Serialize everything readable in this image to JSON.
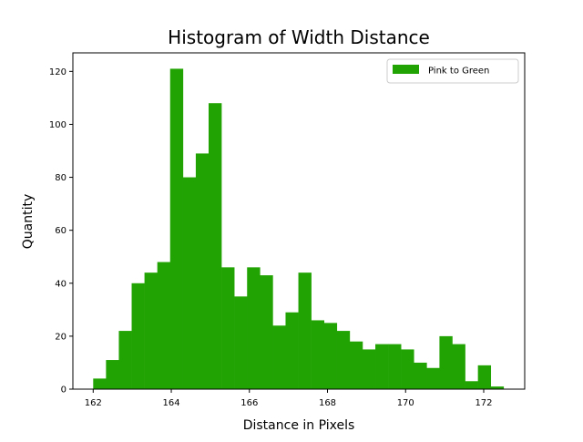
{
  "chart_data": {
    "type": "bar",
    "title": "Histogram of Width Distance",
    "xlabel": "Distance in Pixels",
    "ylabel": "Quantity",
    "xlim": [
      161.48,
      173.05
    ],
    "ylim": [
      0,
      127
    ],
    "x_ticks": [
      162,
      164,
      166,
      168,
      170,
      172
    ],
    "y_ticks": [
      0,
      20,
      40,
      60,
      80,
      100,
      120
    ],
    "grid": false,
    "legend_position": "top-right",
    "bin_start": 162.0,
    "bin_width": 0.3284,
    "series": [
      {
        "name": "Pink to Green",
        "color": "#22a304",
        "values": [
          4,
          11,
          22,
          40,
          44,
          48,
          121,
          80,
          89,
          108,
          46,
          35,
          46,
          43,
          24,
          29,
          44,
          26,
          25,
          22,
          18,
          15,
          17,
          17,
          15,
          10,
          8,
          20,
          17,
          3,
          9,
          1
        ]
      }
    ]
  }
}
